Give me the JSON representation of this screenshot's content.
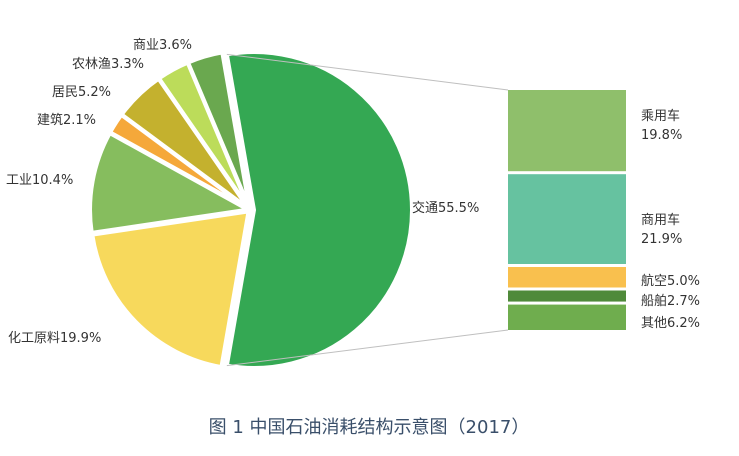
{
  "chart_data": {
    "type": "pie",
    "title": "图 1 中国石油消耗结构示意图（2017）",
    "slices": [
      {
        "label": "交通55.5%",
        "value": 55.5,
        "color": "#34a853"
      },
      {
        "label": "化工原料19.9%",
        "value": 19.9,
        "color": "#f7d95c"
      },
      {
        "label": "工业10.4%",
        "value": 10.4,
        "color": "#86bd5e"
      },
      {
        "label": "建筑2.1%",
        "value": 2.1,
        "color": "#f5a83a"
      },
      {
        "label": "居民5.2%",
        "value": 5.2,
        "color": "#c4b12e"
      },
      {
        "label": "农林渔3.3%",
        "value": 3.3,
        "color": "#bcdc5a"
      },
      {
        "label": "商业3.6%",
        "value": 3.6,
        "color": "#6aa84f"
      }
    ],
    "breakdown_of": "交通55.5%",
    "breakdown": [
      {
        "label_line1": "乘用车",
        "label_line2": "19.8%",
        "value": 19.8,
        "color": "#8fbf6b"
      },
      {
        "label_line1": "商用车",
        "label_line2": "21.9%",
        "value": 21.9,
        "color": "#66c2a0"
      },
      {
        "label_line1": "航空5.0%",
        "label_line2": "",
        "value": 5.0,
        "color": "#f9c04e"
      },
      {
        "label_line1": "船舶2.7%",
        "label_line2": "",
        "value": 2.7,
        "color": "#4f8a3a"
      },
      {
        "label_line1": "其他6.2%",
        "label_line2": "",
        "value": 6.2,
        "color": "#6fad4e"
      }
    ]
  }
}
